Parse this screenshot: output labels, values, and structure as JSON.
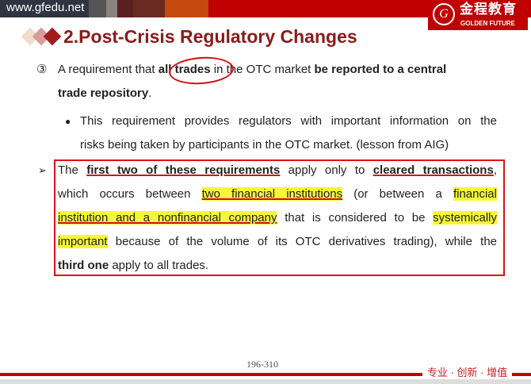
{
  "header": {
    "url": "www.gfedu.net",
    "logo_cn": "金程教育",
    "logo_en": "GOLDEN FUTURE",
    "logo_seal": "G"
  },
  "title": "2.Post-Crisis Regulatory Changes",
  "item3": {
    "marker": "③",
    "l1a": "A requirement that ",
    "l1b": "all trades",
    "l1c": " in the OTC market ",
    "l1d": "be reported to a central",
    "l2a": "trade repository",
    "l2b": "."
  },
  "sub": {
    "bullet": "●",
    "l1": "This requirement provides regulators with important information on the",
    "l2": "risks being taken by participants in the OTC market. (lesson from AIG)"
  },
  "boxed": {
    "marker": "➢",
    "l1a": "The ",
    "l1b": "first two of these requirements",
    "l1c": " apply only to ",
    "l1d": "cleared transactions",
    ",": ",",
    "l2a": "which occurs between ",
    "l2b": "two financial institutions",
    "l2c": " (or between a ",
    "l2d": "financial",
    "l3a": "institution and a nonfinancial company",
    "l3b": " that is considered to be ",
    "l3c": "systemically",
    "l4a": "important",
    "l4b": " because of the volume of its OTC derivatives trading), while the",
    "l5a": "third one",
    "l5b": " apply to all trades."
  },
  "footer": {
    "page": "196-310",
    "tagline": "专业 · 创新 · 增值"
  },
  "colors": {
    "brand_red": "#c00000",
    "title": "#8b1a1a",
    "highlight": "#f5f53a",
    "annotation": "#e01010"
  }
}
